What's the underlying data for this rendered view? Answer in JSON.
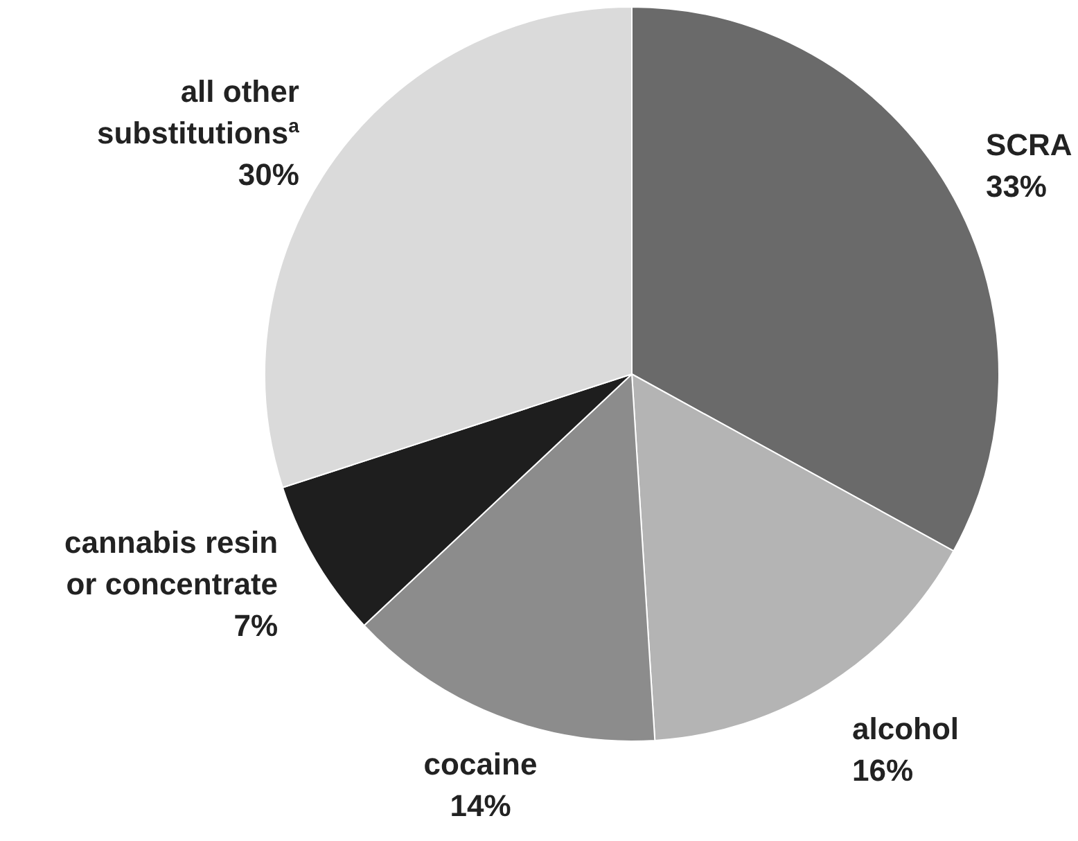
{
  "chart_data": {
    "type": "pie",
    "categories": [
      "SCRA",
      "alcohol",
      "cocaine",
      "cannabis resin\nor concentrate",
      "all other\nsubstitutions$^{a}$"
    ],
    "values": [
      33,
      16,
      14,
      7,
      30
    ],
    "colors": [
      "#6a6a6a",
      "#b4b4b4",
      "#8c8c8c",
      "#1e1e1e",
      "#dadada"
    ],
    "value_labels": [
      "33%",
      "16%",
      "14%",
      "7%",
      "30%"
    ]
  }
}
